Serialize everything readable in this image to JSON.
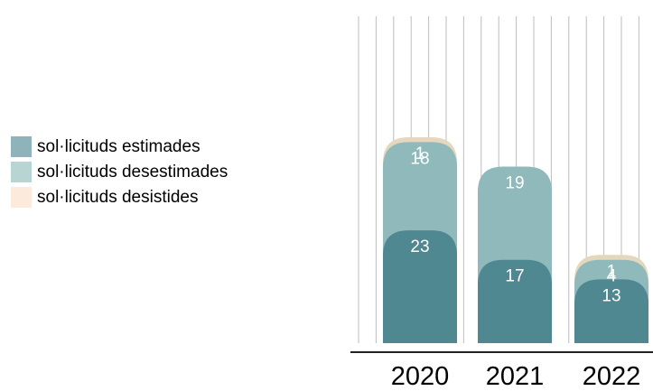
{
  "chart_data": {
    "type": "bar",
    "stacked": true,
    "categories": [
      "2020",
      "2021",
      "2022"
    ],
    "series": [
      {
        "name": "sol·licituds estimades",
        "values": [
          23,
          17,
          13
        ],
        "color": "#4f8890",
        "legend_color": "#8fb3ba"
      },
      {
        "name": "sol·licituds desestimades",
        "values": [
          18,
          19,
          4
        ],
        "color": "#8fb9ba",
        "legend_color": "#b8d5d3"
      },
      {
        "name": "sol·licituds desistides",
        "values": [
          1,
          0,
          1
        ],
        "color": "#e5d7bd",
        "legend_color": "#fcebdd"
      }
    ],
    "legend_position": "left",
    "grid": "vertical",
    "ylim": [
      0,
      60
    ],
    "colors": {
      "grid": "#bdbdbd",
      "axis": "#222222",
      "data_label": "#ffffff",
      "tick_label": "#000000"
    }
  }
}
